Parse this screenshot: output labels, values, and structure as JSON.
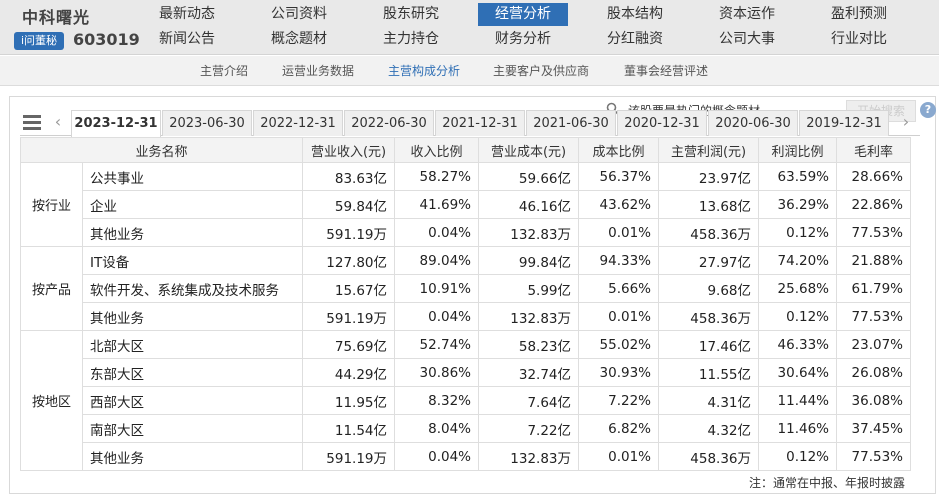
{
  "stock": {
    "name": "中科曙光",
    "badge": "i问董秘",
    "code": "603019"
  },
  "nav": {
    "row1": [
      "最新动态",
      "公司资料",
      "股东研究",
      "经营分析",
      "股本结构",
      "资本运作",
      "盈利预测"
    ],
    "row2": [
      "新闻公告",
      "概念题材",
      "主力持仓",
      "财务分析",
      "分红融资",
      "公司大事",
      "行业对比"
    ],
    "active": "经营分析"
  },
  "subnav": {
    "items": [
      "主营介绍",
      "运营业务数据",
      "主营构成分析",
      "主要客户及供应商",
      "董事会经营评述"
    ],
    "active": "主营构成分析"
  },
  "hint": "该股票最热门的概念题材",
  "search_label": "开始搜索",
  "help_label": "?",
  "date_tabs": [
    "2023-12-31",
    "2023-06-30",
    "2022-12-31",
    "2022-06-30",
    "2021-12-31",
    "2021-06-30",
    "2020-12-31",
    "2020-06-30",
    "2019-12-31"
  ],
  "active_date": "2023-12-31",
  "table": {
    "headers": [
      "业务名称",
      "营业收入(元)",
      "收入比例",
      "营业成本(元)",
      "成本比例",
      "主营利润(元)",
      "利润比例",
      "毛利率"
    ],
    "groups": [
      {
        "label": "按行业",
        "rows": [
          [
            "公共事业",
            "83.63亿",
            "58.27%",
            "59.66亿",
            "56.37%",
            "23.97亿",
            "63.59%",
            "28.66%"
          ],
          [
            "企业",
            "59.84亿",
            "41.69%",
            "46.16亿",
            "43.62%",
            "13.68亿",
            "36.29%",
            "22.86%"
          ],
          [
            "其他业务",
            "591.19万",
            "0.04%",
            "132.83万",
            "0.01%",
            "458.36万",
            "0.12%",
            "77.53%"
          ]
        ]
      },
      {
        "label": "按产品",
        "rows": [
          [
            "IT设备",
            "127.80亿",
            "89.04%",
            "99.84亿",
            "94.33%",
            "27.97亿",
            "74.20%",
            "21.88%"
          ],
          [
            "软件开发、系统集成及技术服务",
            "15.67亿",
            "10.91%",
            "5.99亿",
            "5.66%",
            "9.68亿",
            "25.68%",
            "61.79%"
          ],
          [
            "其他业务",
            "591.19万",
            "0.04%",
            "132.83万",
            "0.01%",
            "458.36万",
            "0.12%",
            "77.53%"
          ]
        ]
      },
      {
        "label": "按地区",
        "rows": [
          [
            "北部大区",
            "75.69亿",
            "52.74%",
            "58.23亿",
            "55.02%",
            "17.46亿",
            "46.33%",
            "23.07%"
          ],
          [
            "东部大区",
            "44.29亿",
            "30.86%",
            "32.74亿",
            "30.93%",
            "11.55亿",
            "30.64%",
            "26.08%"
          ],
          [
            "西部大区",
            "11.95亿",
            "8.32%",
            "7.64亿",
            "7.22%",
            "4.31亿",
            "11.44%",
            "36.08%"
          ],
          [
            "南部大区",
            "11.54亿",
            "8.04%",
            "7.22亿",
            "6.82%",
            "4.32亿",
            "11.46%",
            "37.45%"
          ],
          [
            "其他业务",
            "591.19万",
            "0.04%",
            "132.83万",
            "0.01%",
            "458.36万",
            "0.12%",
            "77.53%"
          ]
        ]
      }
    ]
  },
  "note": "注：通常在中报、年报时披露",
  "icons": {
    "menu": "menu-icon",
    "prev": "chevron-left-icon",
    "next": "chevron-right-icon",
    "search": "search-icon",
    "help": "help-icon"
  }
}
